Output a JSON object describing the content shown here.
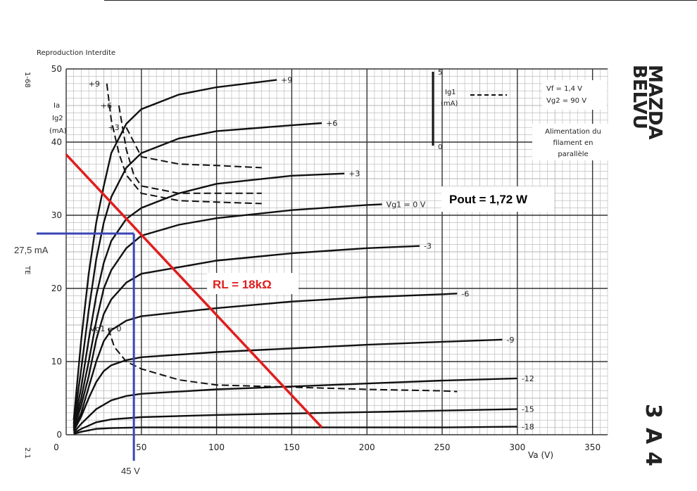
{
  "chart_data": {
    "type": "line",
    "title": "Reproduction Interdite",
    "brand": [
      "MAZDA",
      "BELVU"
    ],
    "tube_model": [
      "3",
      "A",
      "4"
    ],
    "side_labels": {
      "top": "1-68",
      "mid": "TE",
      "bottom": "2.1"
    },
    "xlabel": "Va (V)",
    "ylabel": [
      "Ia",
      "Ig2",
      "(mA)"
    ],
    "xlim": [
      0,
      360
    ],
    "ylim": [
      0,
      50
    ],
    "xticks": [
      0,
      50,
      100,
      150,
      200,
      250,
      300,
      350
    ],
    "yticks": [
      0,
      10,
      20,
      30,
      40,
      50
    ],
    "grid": true,
    "secondary_axis": {
      "label": [
        "Ig1",
        "(mA)"
      ],
      "ticks": [
        0,
        5
      ]
    },
    "conditions": [
      "Vf = 1,4 V",
      "Vg2 = 90 V"
    ],
    "note": [
      "Alimentation du",
      "filament en",
      "parallèle"
    ],
    "series": [
      {
        "name": "+9",
        "values": [
          [
            5,
            2
          ],
          [
            10,
            13
          ],
          [
            15,
            22
          ],
          [
            20,
            29
          ],
          [
            25,
            34
          ],
          [
            30,
            38.5
          ],
          [
            40,
            42.5
          ],
          [
            50,
            44.5
          ],
          [
            75,
            46.5
          ],
          [
            100,
            47.5
          ],
          [
            140,
            48.5
          ]
        ]
      },
      {
        "name": "+6",
        "values": [
          [
            5,
            1.5
          ],
          [
            10,
            9
          ],
          [
            15,
            17
          ],
          [
            20,
            24
          ],
          [
            25,
            29
          ],
          [
            30,
            32.5
          ],
          [
            40,
            36.5
          ],
          [
            50,
            38.5
          ],
          [
            75,
            40.5
          ],
          [
            100,
            41.5
          ],
          [
            150,
            42.3
          ],
          [
            170,
            42.6
          ]
        ]
      },
      {
        "name": "+3",
        "values": [
          [
            5,
            1.2
          ],
          [
            10,
            6.5
          ],
          [
            15,
            13
          ],
          [
            20,
            19
          ],
          [
            25,
            23.5
          ],
          [
            30,
            26.5
          ],
          [
            40,
            29.5
          ],
          [
            50,
            31
          ],
          [
            75,
            33
          ],
          [
            100,
            34.3
          ],
          [
            150,
            35.4
          ],
          [
            185,
            35.7
          ]
        ]
      },
      {
        "name": "Vg1 = 0 V",
        "values": [
          [
            5,
            1
          ],
          [
            10,
            5
          ],
          [
            15,
            10
          ],
          [
            20,
            15.5
          ],
          [
            25,
            20
          ],
          [
            30,
            22.5
          ],
          [
            40,
            25.5
          ],
          [
            50,
            27.2
          ],
          [
            75,
            28.7
          ],
          [
            100,
            29.6
          ],
          [
            150,
            30.7
          ],
          [
            200,
            31.4
          ],
          [
            210,
            31.5
          ]
        ]
      },
      {
        "name": "-3",
        "values": [
          [
            5,
            0.8
          ],
          [
            10,
            4
          ],
          [
            15,
            8
          ],
          [
            20,
            13
          ],
          [
            25,
            16.5
          ],
          [
            30,
            18.5
          ],
          [
            40,
            20.8
          ],
          [
            50,
            22
          ],
          [
            100,
            23.8
          ],
          [
            150,
            24.8
          ],
          [
            200,
            25.5
          ],
          [
            235,
            25.8
          ]
        ]
      },
      {
        "name": "-6",
        "values": [
          [
            5,
            0.6
          ],
          [
            10,
            3
          ],
          [
            15,
            6.5
          ],
          [
            20,
            10
          ],
          [
            25,
            12.8
          ],
          [
            30,
            14.3
          ],
          [
            40,
            15.6
          ],
          [
            50,
            16.2
          ],
          [
            100,
            17.3
          ],
          [
            150,
            18.2
          ],
          [
            200,
            18.8
          ],
          [
            250,
            19.2
          ],
          [
            260,
            19.3
          ]
        ]
      },
      {
        "name": "-9",
        "values": [
          [
            5,
            0.5
          ],
          [
            10,
            2.5
          ],
          [
            15,
            5
          ],
          [
            20,
            7.2
          ],
          [
            25,
            8.7
          ],
          [
            30,
            9.5
          ],
          [
            40,
            10.2
          ],
          [
            50,
            10.6
          ],
          [
            100,
            11.3
          ],
          [
            150,
            11.8
          ],
          [
            200,
            12.3
          ],
          [
            250,
            12.7
          ],
          [
            290,
            13
          ]
        ]
      },
      {
        "name": "-12",
        "values": [
          [
            5,
            0.3
          ],
          [
            10,
            1.5
          ],
          [
            20,
            3.5
          ],
          [
            30,
            4.7
          ],
          [
            40,
            5.3
          ],
          [
            50,
            5.6
          ],
          [
            100,
            6.2
          ],
          [
            150,
            6.6
          ],
          [
            200,
            7
          ],
          [
            250,
            7.4
          ],
          [
            300,
            7.7
          ]
        ]
      },
      {
        "name": "-15",
        "values": [
          [
            5,
            0.2
          ],
          [
            10,
            0.8
          ],
          [
            20,
            1.7
          ],
          [
            30,
            2.1
          ],
          [
            50,
            2.4
          ],
          [
            100,
            2.7
          ],
          [
            150,
            2.9
          ],
          [
            200,
            3.1
          ],
          [
            250,
            3.3
          ],
          [
            300,
            3.5
          ]
        ]
      },
      {
        "name": "-18",
        "values": [
          [
            5,
            0.1
          ],
          [
            10,
            0.4
          ],
          [
            20,
            0.8
          ],
          [
            30,
            0.9
          ],
          [
            50,
            1
          ],
          [
            100,
            1
          ],
          [
            150,
            1
          ],
          [
            200,
            1
          ],
          [
            250,
            1
          ],
          [
            300,
            1.1
          ]
        ]
      }
    ],
    "screen_grid_series": [
      {
        "name": "+9",
        "values": [
          [
            27,
            48
          ],
          [
            30,
            43
          ],
          [
            35,
            38.5
          ],
          [
            40,
            35.5
          ],
          [
            50,
            33
          ],
          [
            75,
            32
          ],
          [
            100,
            31.8
          ],
          [
            130,
            31.6
          ]
        ]
      },
      {
        "name": "+6",
        "values": [
          [
            35,
            45
          ],
          [
            40,
            39
          ],
          [
            45,
            35.5
          ],
          [
            50,
            34
          ],
          [
            75,
            33
          ],
          [
            100,
            33
          ],
          [
            130,
            33
          ]
        ]
      },
      {
        "name": "+3",
        "values": [
          [
            40,
            42
          ],
          [
            50,
            38
          ],
          [
            75,
            37
          ],
          [
            100,
            36.8
          ],
          [
            130,
            36.5
          ]
        ]
      },
      {
        "name": "Vg1 = 0",
        "values": [
          [
            28,
            14.5
          ],
          [
            32,
            12
          ],
          [
            40,
            10
          ],
          [
            50,
            9
          ],
          [
            75,
            7.5
          ],
          [
            100,
            6.8
          ],
          [
            150,
            6.5
          ],
          [
            200,
            6.2
          ],
          [
            250,
            6
          ],
          [
            260,
            5.9
          ]
        ]
      }
    ],
    "annotations": {
      "load_line_label": "RL = 18kΩ",
      "pout": "Pout = 1,72 W",
      "ia_marker": "27,5 mA",
      "va_marker": "45 V",
      "load_line": [
        [
          0,
          38.3
        ],
        [
          170,
          1
        ]
      ],
      "operating_point": [
        45,
        27.5
      ]
    }
  }
}
